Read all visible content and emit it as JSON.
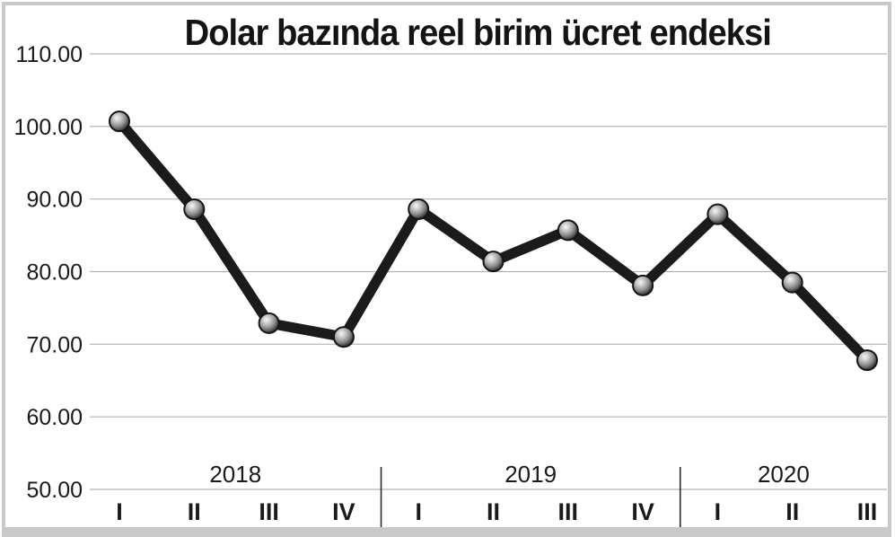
{
  "chart_data": {
    "type": "line",
    "title": "Dolar bazında reel birim ücret endeksi",
    "x_groups": [
      {
        "year": "2018",
        "quarters": [
          "I",
          "II",
          "III",
          "IV"
        ]
      },
      {
        "year": "2019",
        "quarters": [
          "I",
          "II",
          "III",
          "IV"
        ]
      },
      {
        "year": "2020",
        "quarters": [
          "I",
          "II",
          "III"
        ]
      }
    ],
    "values": [
      100.7,
      88.6,
      72.9,
      71.0,
      88.6,
      81.4,
      85.7,
      78.1,
      87.9,
      78.5,
      67.8
    ],
    "ylim": [
      50,
      110
    ],
    "ytick_step": 10,
    "ytick_labels": [
      "110.00",
      "100.00",
      "90.00",
      "80.00",
      "70.00",
      "60.00",
      "50.00"
    ],
    "grid": "horizontal",
    "legend": "none",
    "colors": {
      "line": "#1b1b1b",
      "marker_rim": "#141414",
      "marker_body": "#8d8d8d",
      "marker_highlight": "#f7f7f7",
      "grid": "#b3b3b3",
      "divider": "#2b2b2b",
      "text": "#1a1a1a"
    }
  }
}
